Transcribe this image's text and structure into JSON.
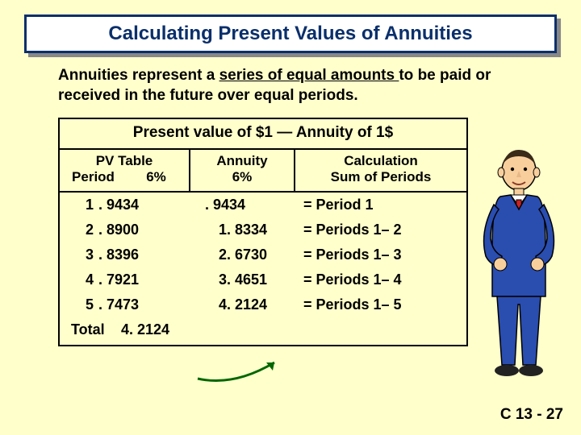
{
  "colors": {
    "page_bg": "#ffffcc",
    "title_border": "#0a2f6b",
    "title_text": "#0a2f6b",
    "shadow": "#888888",
    "rule": "#000000",
    "arrow": "#006600",
    "suit": "#2a4db0",
    "tie": "#cc2222",
    "skin": "#f8cf9c",
    "hair": "#3a2a18",
    "shirt": "#ffffff",
    "shoe": "#222222"
  },
  "title": "Calculating Present Values of Annuities",
  "intro": {
    "pre": "Annuities represent a ",
    "underline": "series of equal amounts ",
    "post": "to be paid or received in the future over equal periods."
  },
  "table": {
    "caption": "Present value of $1 — Annuity of 1$",
    "headers": {
      "pv_top": "PV Table",
      "pv_left": "Period",
      "pv_right": "6%",
      "annuity": "Annuity\n6%",
      "calc": "Calculation\nSum of Periods"
    },
    "rows": [
      {
        "period": "1",
        "pv": ". 9434",
        "annuity": ". 9434",
        "annuity_first": true,
        "calc": "= Period 1"
      },
      {
        "period": "2",
        "pv": ". 8900",
        "annuity": "1. 8334",
        "annuity_first": false,
        "calc": "= Periods 1– 2"
      },
      {
        "period": "3",
        "pv": ". 8396",
        "annuity": "2. 6730",
        "annuity_first": false,
        "calc": "= Periods 1– 3"
      },
      {
        "period": "4",
        "pv": ". 7921",
        "annuity": "3. 4651",
        "annuity_first": false,
        "calc": "= Periods 1– 4"
      },
      {
        "period": "5",
        "pv": ". 7473",
        "annuity": "4. 2124",
        "annuity_first": false,
        "calc": "= Periods 1– 5"
      }
    ],
    "total_label": "Total",
    "total_value": "4. 2124"
  },
  "footer": "C 13 - 27"
}
